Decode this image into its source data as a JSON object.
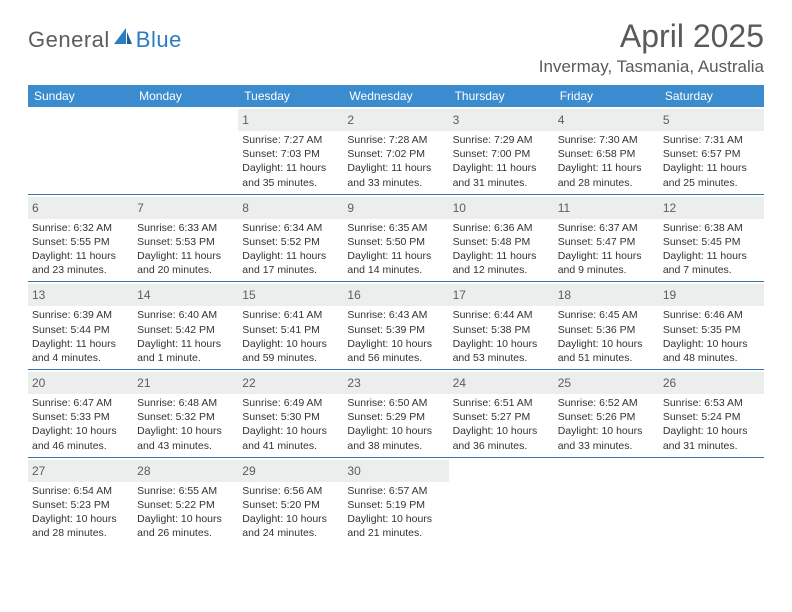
{
  "brand": {
    "part1": "General",
    "part2": "Blue"
  },
  "title": "April 2025",
  "location": "Invermay, Tasmania, Australia",
  "colors": {
    "header_bg": "#3b8bcf",
    "header_text": "#ffffff",
    "daynum_bg": "#eceded",
    "rule": "#3577ae",
    "title_text": "#5a5a5a",
    "body_text": "#333333"
  },
  "weekdays": [
    "Sunday",
    "Monday",
    "Tuesday",
    "Wednesday",
    "Thursday",
    "Friday",
    "Saturday"
  ],
  "weeks": [
    [
      null,
      null,
      {
        "n": "1",
        "sr": "7:27 AM",
        "ss": "7:03 PM",
        "dl": "11 hours and 35 minutes."
      },
      {
        "n": "2",
        "sr": "7:28 AM",
        "ss": "7:02 PM",
        "dl": "11 hours and 33 minutes."
      },
      {
        "n": "3",
        "sr": "7:29 AM",
        "ss": "7:00 PM",
        "dl": "11 hours and 31 minutes."
      },
      {
        "n": "4",
        "sr": "7:30 AM",
        "ss": "6:58 PM",
        "dl": "11 hours and 28 minutes."
      },
      {
        "n": "5",
        "sr": "7:31 AM",
        "ss": "6:57 PM",
        "dl": "11 hours and 25 minutes."
      }
    ],
    [
      {
        "n": "6",
        "sr": "6:32 AM",
        "ss": "5:55 PM",
        "dl": "11 hours and 23 minutes."
      },
      {
        "n": "7",
        "sr": "6:33 AM",
        "ss": "5:53 PM",
        "dl": "11 hours and 20 minutes."
      },
      {
        "n": "8",
        "sr": "6:34 AM",
        "ss": "5:52 PM",
        "dl": "11 hours and 17 minutes."
      },
      {
        "n": "9",
        "sr": "6:35 AM",
        "ss": "5:50 PM",
        "dl": "11 hours and 14 minutes."
      },
      {
        "n": "10",
        "sr": "6:36 AM",
        "ss": "5:48 PM",
        "dl": "11 hours and 12 minutes."
      },
      {
        "n": "11",
        "sr": "6:37 AM",
        "ss": "5:47 PM",
        "dl": "11 hours and 9 minutes."
      },
      {
        "n": "12",
        "sr": "6:38 AM",
        "ss": "5:45 PM",
        "dl": "11 hours and 7 minutes."
      }
    ],
    [
      {
        "n": "13",
        "sr": "6:39 AM",
        "ss": "5:44 PM",
        "dl": "11 hours and 4 minutes."
      },
      {
        "n": "14",
        "sr": "6:40 AM",
        "ss": "5:42 PM",
        "dl": "11 hours and 1 minute."
      },
      {
        "n": "15",
        "sr": "6:41 AM",
        "ss": "5:41 PM",
        "dl": "10 hours and 59 minutes."
      },
      {
        "n": "16",
        "sr": "6:43 AM",
        "ss": "5:39 PM",
        "dl": "10 hours and 56 minutes."
      },
      {
        "n": "17",
        "sr": "6:44 AM",
        "ss": "5:38 PM",
        "dl": "10 hours and 53 minutes."
      },
      {
        "n": "18",
        "sr": "6:45 AM",
        "ss": "5:36 PM",
        "dl": "10 hours and 51 minutes."
      },
      {
        "n": "19",
        "sr": "6:46 AM",
        "ss": "5:35 PM",
        "dl": "10 hours and 48 minutes."
      }
    ],
    [
      {
        "n": "20",
        "sr": "6:47 AM",
        "ss": "5:33 PM",
        "dl": "10 hours and 46 minutes."
      },
      {
        "n": "21",
        "sr": "6:48 AM",
        "ss": "5:32 PM",
        "dl": "10 hours and 43 minutes."
      },
      {
        "n": "22",
        "sr": "6:49 AM",
        "ss": "5:30 PM",
        "dl": "10 hours and 41 minutes."
      },
      {
        "n": "23",
        "sr": "6:50 AM",
        "ss": "5:29 PM",
        "dl": "10 hours and 38 minutes."
      },
      {
        "n": "24",
        "sr": "6:51 AM",
        "ss": "5:27 PM",
        "dl": "10 hours and 36 minutes."
      },
      {
        "n": "25",
        "sr": "6:52 AM",
        "ss": "5:26 PM",
        "dl": "10 hours and 33 minutes."
      },
      {
        "n": "26",
        "sr": "6:53 AM",
        "ss": "5:24 PM",
        "dl": "10 hours and 31 minutes."
      }
    ],
    [
      {
        "n": "27",
        "sr": "6:54 AM",
        "ss": "5:23 PM",
        "dl": "10 hours and 28 minutes."
      },
      {
        "n": "28",
        "sr": "6:55 AM",
        "ss": "5:22 PM",
        "dl": "10 hours and 26 minutes."
      },
      {
        "n": "29",
        "sr": "6:56 AM",
        "ss": "5:20 PM",
        "dl": "10 hours and 24 minutes."
      },
      {
        "n": "30",
        "sr": "6:57 AM",
        "ss": "5:19 PM",
        "dl": "10 hours and 21 minutes."
      },
      null,
      null,
      null
    ]
  ],
  "labels": {
    "sunrise": "Sunrise:",
    "sunset": "Sunset:",
    "daylight": "Daylight:"
  }
}
